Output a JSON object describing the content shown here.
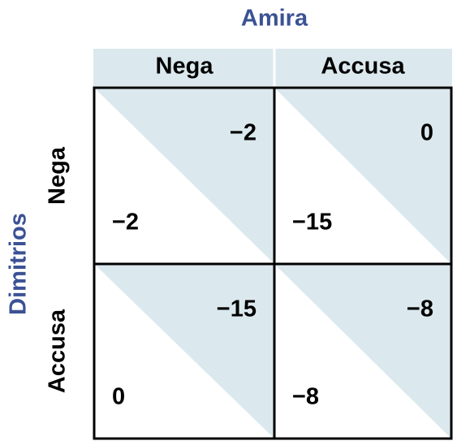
{
  "column_player": "Amira",
  "row_player": "Dimitrios",
  "columns": [
    "Nega",
    "Accusa"
  ],
  "rows": [
    "Nega",
    "Accusa"
  ],
  "cells": [
    [
      {
        "column_payoff": "−2",
        "row_payoff": "−2"
      },
      {
        "column_payoff": "0",
        "row_payoff": "−15"
      }
    ],
    [
      {
        "column_payoff": "−15",
        "row_payoff": "0"
      },
      {
        "column_payoff": "−8",
        "row_payoff": "−8"
      }
    ]
  ]
}
